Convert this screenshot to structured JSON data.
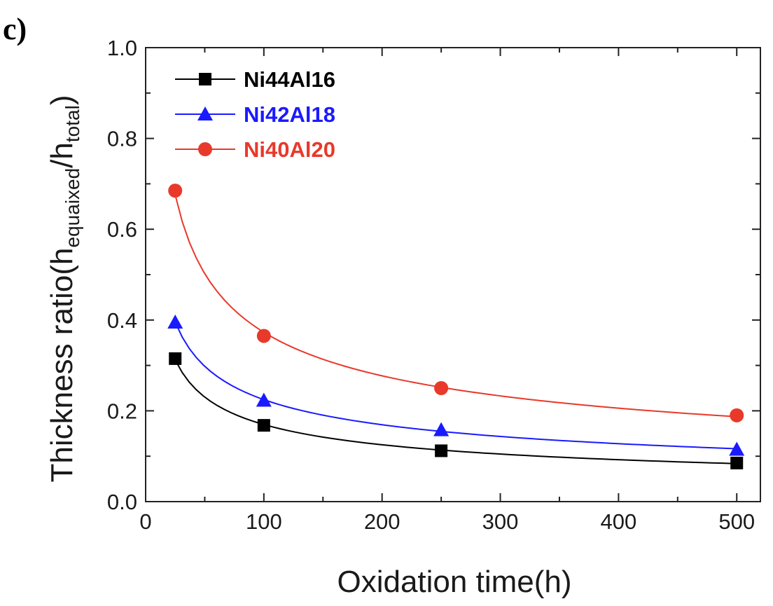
{
  "panel_label": "c)",
  "chart_data": {
    "type": "scatter",
    "xlabel": "Oxidation time(h)",
    "ylabel": {
      "main": "Thickness ratio(h",
      "sub1": "equaixed",
      "mid": "/h",
      "sub2": "total",
      "end": ")"
    },
    "xlim": [
      0,
      520
    ],
    "ylim": [
      0.0,
      1.0
    ],
    "xticks": [
      0,
      100,
      200,
      300,
      400,
      500
    ],
    "xtick_labels": [
      "0",
      "100",
      "200",
      "300",
      "400",
      "500"
    ],
    "yticks": [
      0.0,
      0.2,
      0.4,
      0.6,
      0.8,
      1.0
    ],
    "ytick_labels": [
      "0.0",
      "0.2",
      "0.4",
      "0.6",
      "0.8",
      "1.0"
    ],
    "legend_position": "top-left",
    "fit_lines": true,
    "series": [
      {
        "name": "Ni44Al16",
        "marker": "square",
        "color": "#000000",
        "x": [
          25,
          100,
          250,
          500
        ],
        "y": [
          0.315,
          0.168,
          0.112,
          0.085
        ]
      },
      {
        "name": "Ni42Al18",
        "marker": "triangle",
        "color": "#1a1aff",
        "x": [
          25,
          100,
          250,
          500
        ],
        "y": [
          0.395,
          0.223,
          0.158,
          0.115
        ]
      },
      {
        "name": "Ni40Al20",
        "marker": "circle",
        "color": "#e8392a",
        "x": [
          25,
          100,
          250,
          500
        ],
        "y": [
          0.685,
          0.365,
          0.25,
          0.19
        ]
      }
    ]
  }
}
